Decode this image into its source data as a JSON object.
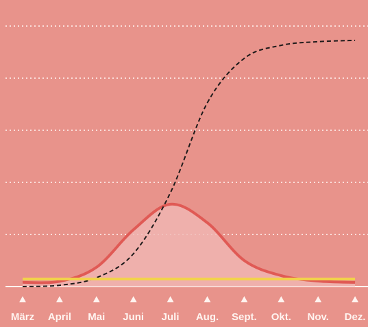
{
  "chart_data": {
    "type": "line",
    "categories": [
      "März",
      "April",
      "Mai",
      "Juni",
      "Juli",
      "Aug.",
      "Sept.",
      "Okt.",
      "Nov.",
      "Dez."
    ],
    "series": [
      {
        "color": "#e05a55",
        "fill": "#f0b8b4",
        "values": [
          1.6,
          2,
          7.4,
          21.8,
          31.6,
          24.5,
          10,
          4.2,
          2.1,
          1.6
        ]
      },
      {
        "color": "#1e1a1a",
        "dashed": true,
        "values": [
          0,
          0.5,
          3.4,
          12.6,
          36,
          70.5,
          87.6,
          92.6,
          94,
          94.5
        ]
      },
      {
        "color": "#f2d34a",
        "values": [
          2.9,
          2.9,
          2.9,
          2.9,
          2.9,
          2.9,
          2.9,
          2.9,
          2.9,
          2.9
        ]
      }
    ],
    "ylim": [
      0,
      100
    ],
    "yticks": [
      20,
      40,
      60,
      80,
      100
    ],
    "grid": true
  }
}
